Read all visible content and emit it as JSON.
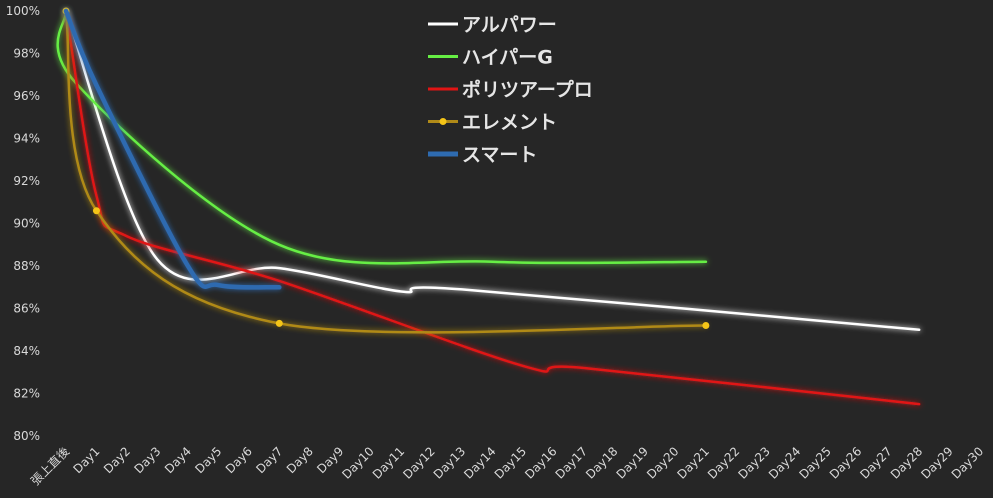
{
  "chart_data": {
    "type": "line",
    "ylim": [
      80,
      100
    ],
    "yticks": [
      "80%",
      "82%",
      "84%",
      "86%",
      "88%",
      "90%",
      "92%",
      "94%",
      "96%",
      "98%",
      "100%"
    ],
    "categories": [
      "張上直後",
      "Day1",
      "Day2",
      "Day3",
      "Day4",
      "Day5",
      "Day6",
      "Day7",
      "Day8",
      "Day9",
      "Day10",
      "Day11",
      "Day12",
      "Day13",
      "Day14",
      "Day15",
      "Day16",
      "Day17",
      "Day18",
      "Day19",
      "Day20",
      "Day21",
      "Day22",
      "Day23",
      "Day24",
      "Day25",
      "Day26",
      "Day27",
      "Day28",
      "Day29",
      "Day30"
    ],
    "grid": false,
    "legend_position": "top-center",
    "series": [
      {
        "name": "アルパワー",
        "color": "#ffffff",
        "points": [
          [
            0,
            100
          ],
          [
            3,
            88.3
          ],
          [
            7,
            87.9
          ],
          [
            11,
            86.8
          ],
          [
            13,
            86.9
          ],
          [
            28,
            85
          ]
        ]
      },
      {
        "name": "ハイパーG",
        "color": "#66ee44",
        "points": [
          [
            0,
            100
          ],
          [
            0.33,
            96.6
          ],
          [
            7,
            89
          ],
          [
            14,
            88.2
          ],
          [
            21,
            88.2
          ]
        ]
      },
      {
        "name": "ポリツアープロ",
        "color": "#e01414",
        "points": [
          [
            0,
            100
          ],
          [
            1,
            91.3
          ],
          [
            2,
            89.4
          ],
          [
            7,
            87.3
          ],
          [
            15,
            83.3
          ],
          [
            17,
            83.2
          ],
          [
            28,
            81.5
          ]
        ]
      },
      {
        "name": "エレメント",
        "color": "#b08a18",
        "markers": true,
        "points": [
          [
            0,
            100
          ],
          [
            1,
            90.6
          ],
          [
            7,
            85.3
          ],
          [
            21,
            85.2
          ]
        ]
      },
      {
        "name": "スマート",
        "color": "#2e6bb0",
        "points": [
          [
            0,
            100
          ],
          [
            1,
            96.5
          ],
          [
            4,
            88
          ],
          [
            5,
            87.1
          ],
          [
            7,
            87
          ]
        ]
      }
    ]
  }
}
